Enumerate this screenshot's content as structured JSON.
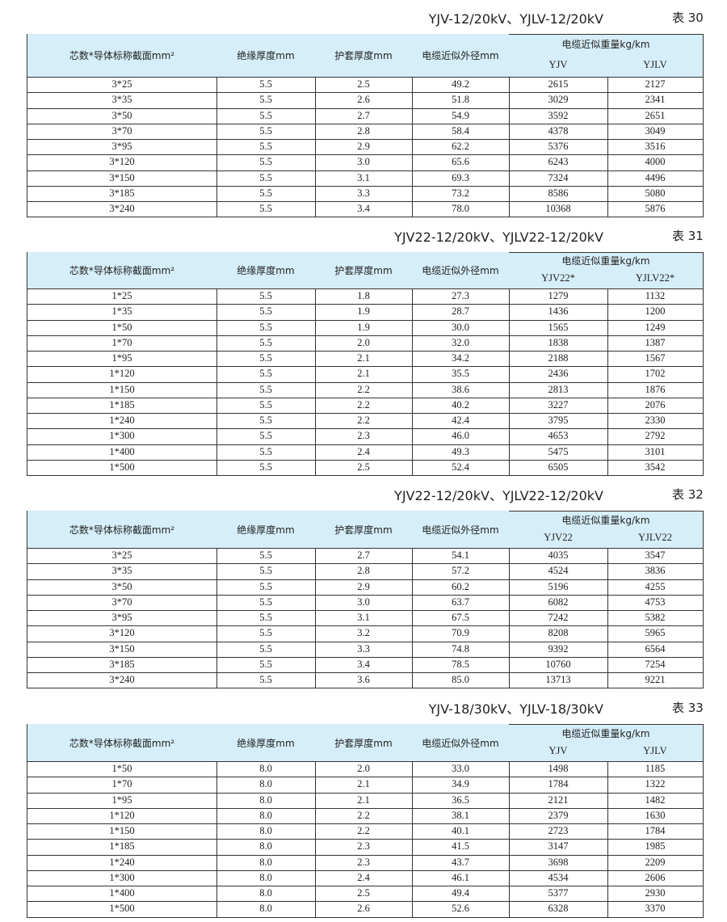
{
  "tables": [
    {
      "title": "YJV-12/20kV、YJLV-12/20kV",
      "label": "表 30",
      "headers": {
        "core": "芯数*导体标称截面mm²",
        "insulation": "绝缘厚度mm",
        "sheath": "护套厚度mm",
        "diameter": "电缆近似外径mm",
        "weight": "电缆近似重量kg/km",
        "sub": [
          "YJV",
          "YJLV"
        ]
      },
      "rows": [
        [
          "3*25",
          "5.5",
          "2.5",
          "49.2",
          "2615",
          "2127"
        ],
        [
          "3*35",
          "5.5",
          "2.6",
          "51.8",
          "3029",
          "2341"
        ],
        [
          "3*50",
          "5.5",
          "2.7",
          "54.9",
          "3592",
          "2651"
        ],
        [
          "3*70",
          "5.5",
          "2.8",
          "58.4",
          "4378",
          "3049"
        ],
        [
          "3*95",
          "5.5",
          "2.9",
          "62.2",
          "5376",
          "3516"
        ],
        [
          "3*120",
          "5.5",
          "3.0",
          "65.6",
          "6243",
          "4000"
        ],
        [
          "3*150",
          "5.5",
          "3.1",
          "69.3",
          "7324",
          "4496"
        ],
        [
          "3*185",
          "5.5",
          "3.3",
          "73.2",
          "8586",
          "5080"
        ],
        [
          "3*240",
          "5.5",
          "3.4",
          "78.0",
          "10368",
          "5876"
        ]
      ]
    },
    {
      "title": "YJV22-12/20kV、YJLV22-12/20kV",
      "label": "表 31",
      "headers": {
        "core": "芯数*导体标称截面mm²",
        "insulation": "绝缘厚度mm",
        "sheath": "护套厚度mm",
        "diameter": "电缆近似外径mm",
        "weight": "电缆近似重量kg/km",
        "sub": [
          "YJV22*",
          "YJLV22*"
        ]
      },
      "rows": [
        [
          "1*25",
          "5.5",
          "1.8",
          "27.3",
          "1279",
          "1132"
        ],
        [
          "1*35",
          "5.5",
          "1.9",
          "28.7",
          "1436",
          "1200"
        ],
        [
          "1*50",
          "5.5",
          "1.9",
          "30.0",
          "1565",
          "1249"
        ],
        [
          "1*70",
          "5.5",
          "2.0",
          "32.0",
          "1838",
          "1387"
        ],
        [
          "1*95",
          "5.5",
          "2.1",
          "34.2",
          "2188",
          "1567"
        ],
        [
          "1*120",
          "5.5",
          "2.1",
          "35.5",
          "2436",
          "1702"
        ],
        [
          "1*150",
          "5.5",
          "2.2",
          "38.6",
          "2813",
          "1876"
        ],
        [
          "1*185",
          "5.5",
          "2.2",
          "40.2",
          "3227",
          "2076"
        ],
        [
          "1*240",
          "5.5",
          "2.2",
          "42.4",
          "3795",
          "2330"
        ],
        [
          "1*300",
          "5.5",
          "2.3",
          "46.0",
          "4653",
          "2792"
        ],
        [
          "1*400",
          "5.5",
          "2.4",
          "49.3",
          "5475",
          "3101"
        ],
        [
          "1*500",
          "5.5",
          "2.5",
          "52.4",
          "6505",
          "3542"
        ]
      ]
    },
    {
      "title": "YJV22-12/20kV、YJLV22-12/20kV",
      "label": "表 32",
      "headers": {
        "core": "芯数*导体标称截面mm²",
        "insulation": "绝缘厚度mm",
        "sheath": "护套厚度mm",
        "diameter": "电缆近似外径mm",
        "weight": "电缆近似重量kg/km",
        "sub": [
          "YJV22",
          "YJLV22"
        ]
      },
      "rows": [
        [
          "3*25",
          "5.5",
          "2.7",
          "54.1",
          "4035",
          "3547"
        ],
        [
          "3*35",
          "5.5",
          "2.8",
          "57.2",
          "4524",
          "3836"
        ],
        [
          "3*50",
          "5.5",
          "2.9",
          "60.2",
          "5196",
          "4255"
        ],
        [
          "3*70",
          "5.5",
          "3.0",
          "63.7",
          "6082",
          "4753"
        ],
        [
          "3*95",
          "5.5",
          "3.1",
          "67.5",
          "7242",
          "5382"
        ],
        [
          "3*120",
          "5.5",
          "3.2",
          "70.9",
          "8208",
          "5965"
        ],
        [
          "3*150",
          "5.5",
          "3.3",
          "74.8",
          "9392",
          "6564"
        ],
        [
          "3*185",
          "5.5",
          "3.4",
          "78.5",
          "10760",
          "7254"
        ],
        [
          "3*240",
          "5.5",
          "3.6",
          "85.0",
          "13713",
          "9221"
        ]
      ]
    },
    {
      "title": "YJV-18/30kV、YJLV-18/30kV",
      "label": "表 33",
      "headers": {
        "core": "芯数*导体标称截面mm²",
        "insulation": "绝缘厚度mm",
        "sheath": "护套厚度mm",
        "diameter": "电缆近似外径mm",
        "weight": "电缆近似重量kg/km",
        "sub": [
          "YJV",
          "YJLV"
        ]
      },
      "rows": [
        [
          "1*50",
          "8.0",
          "2.0",
          "33.0",
          "1498",
          "1185"
        ],
        [
          "1*70",
          "8.0",
          "2.1",
          "34.9",
          "1784",
          "1322"
        ],
        [
          "1*95",
          "8.0",
          "2.1",
          "36.5",
          "2121",
          "1482"
        ],
        [
          "1*120",
          "8.0",
          "2.2",
          "38.1",
          "2379",
          "1630"
        ],
        [
          "1*150",
          "8.0",
          "2.2",
          "40.1",
          "2723",
          "1784"
        ],
        [
          "1*185",
          "8.0",
          "2.3",
          "41.5",
          "3147",
          "1985"
        ],
        [
          "1*240",
          "8.0",
          "2.3",
          "43.7",
          "3698",
          "2209"
        ],
        [
          "1*300",
          "8.0",
          "2.4",
          "46.1",
          "4534",
          "2606"
        ],
        [
          "1*400",
          "8.0",
          "2.5",
          "49.4",
          "5377",
          "2930"
        ],
        [
          "1*500",
          "8.0",
          "2.6",
          "52.6",
          "6328",
          "3370"
        ]
      ]
    }
  ]
}
